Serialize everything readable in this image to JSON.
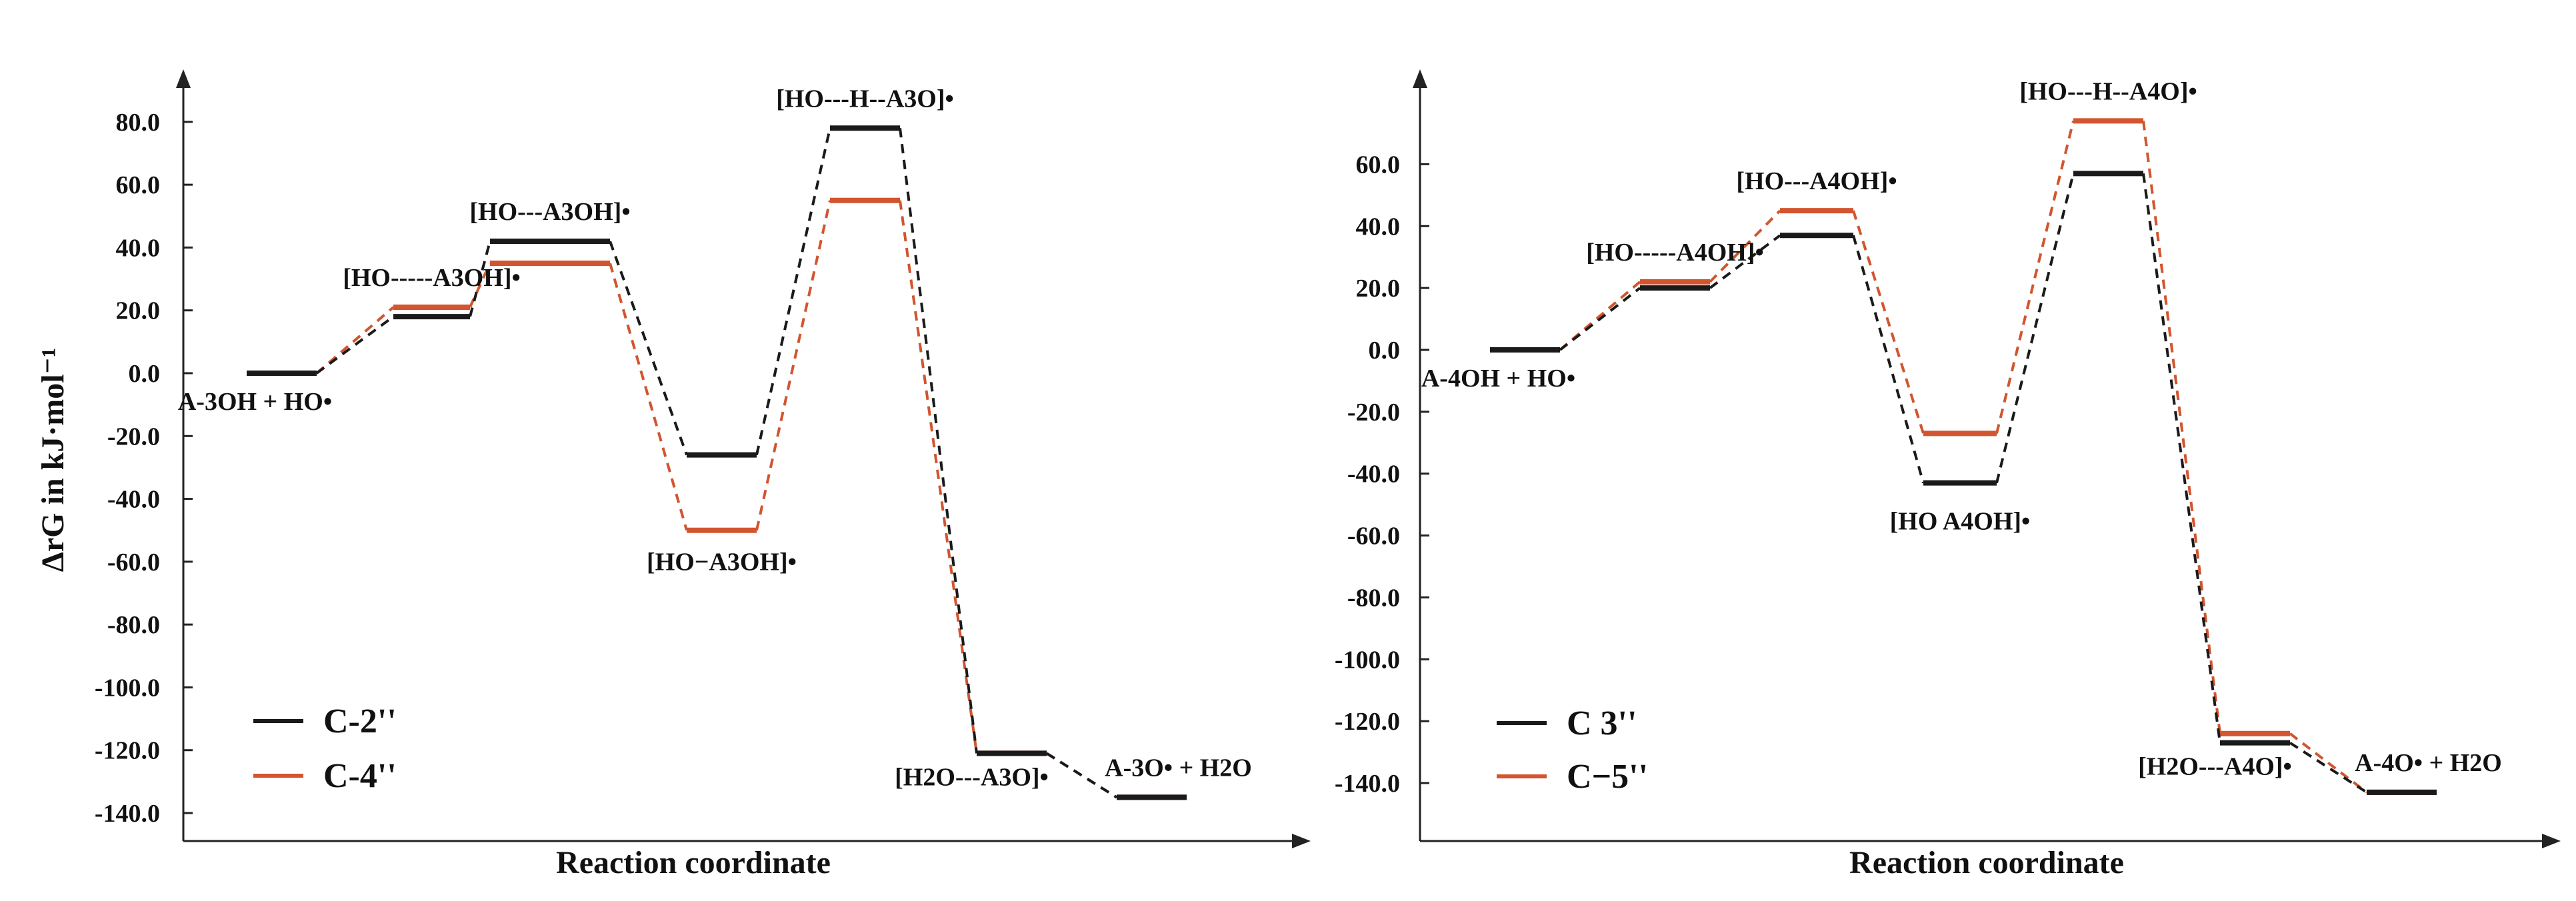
{
  "colors": {
    "black": "#1a1a1a",
    "red": "#d2552f",
    "axis": "#222222"
  },
  "chart_data": [
    {
      "type": "line",
      "subtype": "energy-profile",
      "ylabel": "ΔrG in kJ·mol⁻¹",
      "xlabel": "Reaction coordinate",
      "yticks": [
        "80.0",
        "60.0",
        "40.0",
        "20.0",
        "0.0",
        "-20.0",
        "-40.0",
        "-60.0",
        "-80.0",
        "-100.0",
        "-120.0",
        "-140.0"
      ],
      "ylim": [
        -148,
        92
      ],
      "grid": false,
      "legend_position": "bottom-left",
      "series": [
        {
          "name": "C-2''",
          "color": "#1a1a1a",
          "values": [
            0,
            18,
            42,
            -26,
            78,
            -121,
            -135
          ]
        },
        {
          "name": "C-4''",
          "color": "#d2552f",
          "values": [
            0,
            21,
            35,
            -50,
            55,
            -121,
            -135
          ]
        }
      ],
      "state_labels": [
        {
          "text": "A-3OH + HO•",
          "state": 0,
          "pos": "below"
        },
        {
          "text": "[HO-----A3OH]•",
          "state": 1,
          "pos": "above"
        },
        {
          "text": "[HO---A3OH]•",
          "state": 2,
          "pos": "above"
        },
        {
          "text": "[HO−A3OH]•",
          "state": 3,
          "pos": "below"
        },
        {
          "text": "[HO---H--A3O]•",
          "state": 4,
          "pos": "above"
        },
        {
          "text": "[H2O---A3O]•",
          "state": 5,
          "pos": "below"
        },
        {
          "text": "A-3O• + H2O",
          "state": 6,
          "pos": "above"
        }
      ]
    },
    {
      "type": "line",
      "subtype": "energy-profile",
      "ylabel": "",
      "xlabel": "Reaction coordinate",
      "yticks": [
        "60.0",
        "40.0",
        "20.0",
        "0.0",
        "-20.0",
        "-40.0",
        "-60.0",
        "-80.0",
        "-100.0",
        "-120.0",
        "-140.0"
      ],
      "ylim": [
        -150,
        80
      ],
      "grid": false,
      "legend_position": "bottom-left",
      "series": [
        {
          "name": "C 3''",
          "color": "#1a1a1a",
          "values": [
            0,
            20,
            37,
            -43,
            57,
            -127,
            -143
          ]
        },
        {
          "name": "C−5''",
          "color": "#d2552f",
          "values": [
            0,
            22,
            45,
            -27,
            74,
            -124,
            -143
          ]
        }
      ],
      "state_labels": [
        {
          "text": "A-4OH + HO•",
          "state": 0,
          "pos": "below"
        },
        {
          "text": "[HO-----A4OH]•",
          "state": 1,
          "pos": "above"
        },
        {
          "text": "[HO---A4OH]•",
          "state": 2,
          "pos": "above"
        },
        {
          "text": "[HO   A4OH]•",
          "state": 3,
          "pos": "below"
        },
        {
          "text": "[HO---H--A4O]•",
          "state": 4,
          "pos": "above"
        },
        {
          "text": "[H2O---A4O]•",
          "state": 5,
          "pos": "below"
        },
        {
          "text": "A-4O• + H2O",
          "state": 6,
          "pos": "above"
        }
      ]
    }
  ]
}
